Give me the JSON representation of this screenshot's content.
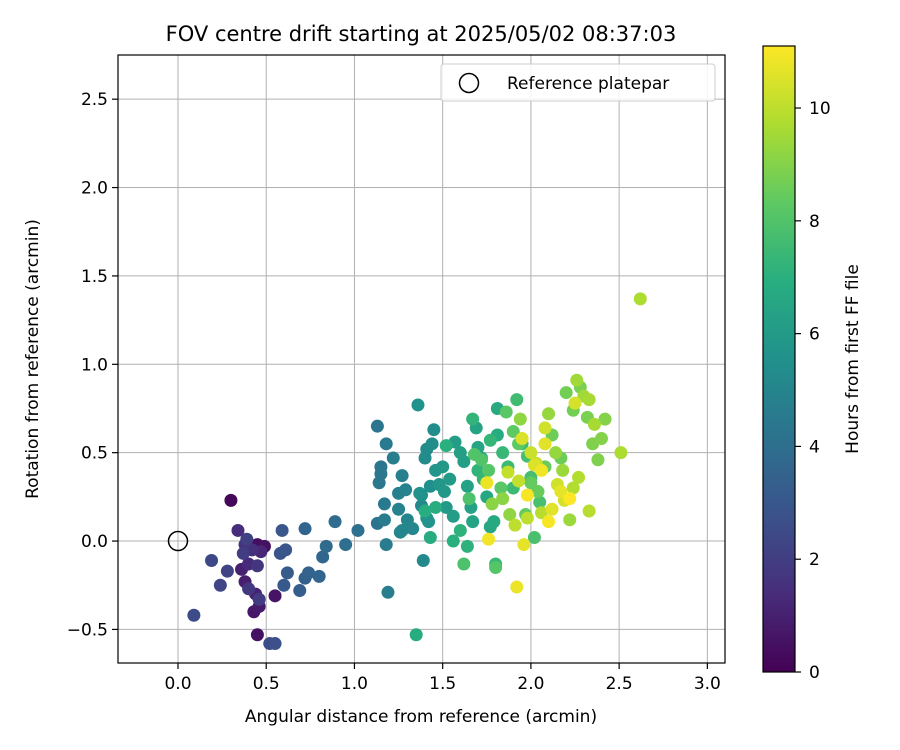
{
  "chart_data": {
    "type": "scatter",
    "title": "FOV centre drift starting at 2025/05/02 08:37:03",
    "xlabel": "Angular distance from reference (arcmin)",
    "ylabel": "Rotation from reference (arcmin)",
    "xlim": [
      -0.34,
      3.1
    ],
    "ylim": [
      -0.69,
      2.75
    ],
    "xticks": [
      "0.0",
      "0.5",
      "1.0",
      "1.5",
      "2.0",
      "2.5",
      "3.0"
    ],
    "yticks": [
      "−0.5",
      "0.0",
      "0.5",
      "1.0",
      "1.5",
      "2.0",
      "2.5"
    ],
    "grid": true,
    "legend": {
      "position": "top-right",
      "entries": [
        "Reference platepar"
      ]
    },
    "reference_point": {
      "x": 0.0,
      "y": 0.0,
      "marker": "open-circle"
    },
    "colorbar": {
      "label": "Hours from first FF file",
      "range": [
        0,
        11.1
      ],
      "ticks": [
        "0",
        "2",
        "4",
        "6",
        "8",
        "10"
      ],
      "colormap": "viridis"
    },
    "points": [
      [
        0.3,
        0.23,
        0.2
      ],
      [
        0.45,
        -0.02,
        0.4
      ],
      [
        0.49,
        -0.03,
        0.5
      ],
      [
        0.55,
        -0.31,
        0.6
      ],
      [
        0.45,
        -0.53,
        0.5
      ],
      [
        0.43,
        -0.4,
        0.7
      ],
      [
        0.46,
        -0.37,
        0.8
      ],
      [
        0.38,
        -0.23,
        0.9
      ],
      [
        0.36,
        -0.16,
        1.0
      ],
      [
        0.44,
        -0.3,
        1.1
      ],
      [
        0.47,
        -0.06,
        1.2
      ],
      [
        0.4,
        -0.13,
        1.3
      ],
      [
        0.34,
        0.06,
        1.4
      ],
      [
        0.42,
        -0.05,
        1.5
      ],
      [
        0.38,
        -0.02,
        1.6
      ],
      [
        0.45,
        -0.14,
        1.7
      ],
      [
        0.4,
        -0.27,
        1.8
      ],
      [
        0.46,
        -0.33,
        1.9
      ],
      [
        0.37,
        -0.07,
        2.0
      ],
      [
        0.39,
        0.01,
        2.1
      ],
      [
        0.28,
        -0.17,
        2.2
      ],
      [
        0.24,
        -0.25,
        2.3
      ],
      [
        0.19,
        -0.11,
        2.4
      ],
      [
        0.09,
        -0.42,
        2.5
      ],
      [
        0.52,
        -0.58,
        2.6
      ],
      [
        0.55,
        -0.58,
        2.7
      ],
      [
        0.58,
        -0.07,
        2.8
      ],
      [
        0.61,
        -0.05,
        2.9
      ],
      [
        0.59,
        0.06,
        3.0
      ],
      [
        0.6,
        -0.25,
        3.1
      ],
      [
        0.62,
        -0.18,
        3.2
      ],
      [
        0.69,
        -0.28,
        3.3
      ],
      [
        0.72,
        -0.21,
        3.4
      ],
      [
        0.74,
        -0.18,
        3.5
      ],
      [
        0.72,
        0.07,
        3.6
      ],
      [
        0.8,
        -0.2,
        3.6
      ],
      [
        0.82,
        -0.09,
        3.7
      ],
      [
        0.84,
        -0.03,
        3.8
      ],
      [
        0.89,
        0.11,
        3.9
      ],
      [
        0.95,
        -0.02,
        4.0
      ],
      [
        1.02,
        0.06,
        4.1
      ],
      [
        1.13,
        0.1,
        4.2
      ],
      [
        1.13,
        0.65,
        4.3
      ],
      [
        1.15,
        0.42,
        4.3
      ],
      [
        1.15,
        0.38,
        4.4
      ],
      [
        1.14,
        0.33,
        4.4
      ],
      [
        1.17,
        0.21,
        4.5
      ],
      [
        1.18,
        0.55,
        4.5
      ],
      [
        1.17,
        0.12,
        4.6
      ],
      [
        1.18,
        -0.02,
        4.6
      ],
      [
        1.19,
        -0.29,
        4.7
      ],
      [
        1.22,
        0.47,
        4.7
      ],
      [
        1.25,
        0.27,
        4.8
      ],
      [
        1.27,
        0.37,
        4.8
      ],
      [
        1.29,
        0.29,
        4.9
      ],
      [
        1.25,
        0.18,
        4.9
      ],
      [
        1.26,
        0.05,
        5.0
      ],
      [
        1.3,
        0.12,
        5.0
      ],
      [
        1.27,
        0.06,
        5.1
      ],
      [
        1.33,
        0.07,
        5.1
      ],
      [
        1.38,
        0.2,
        5.2
      ],
      [
        1.39,
        -0.11,
        5.2
      ],
      [
        1.4,
        0.47,
        5.3
      ],
      [
        1.41,
        0.52,
        5.3
      ],
      [
        1.44,
        0.55,
        5.4
      ],
      [
        1.45,
        0.63,
        5.4
      ],
      [
        1.43,
        0.31,
        5.5
      ],
      [
        1.38,
        0.26,
        5.5
      ],
      [
        1.37,
        0.27,
        5.6
      ],
      [
        1.36,
        0.77,
        5.6
      ],
      [
        1.41,
        0.13,
        5.7
      ],
      [
        1.42,
        0.11,
        5.7
      ],
      [
        1.46,
        0.4,
        5.8
      ],
      [
        1.48,
        0.32,
        5.8
      ],
      [
        1.5,
        0.42,
        5.9
      ],
      [
        1.51,
        0.28,
        5.9
      ],
      [
        1.52,
        0.19,
        6.0
      ],
      [
        1.54,
        0.35,
        6.0
      ],
      [
        1.56,
        0.14,
        6.1
      ],
      [
        1.57,
        0.56,
        6.1
      ],
      [
        1.6,
        0.5,
        6.2
      ],
      [
        1.62,
        0.45,
        6.2
      ],
      [
        1.64,
        0.31,
        6.3
      ],
      [
        1.66,
        0.19,
        6.3
      ],
      [
        1.67,
        0.11,
        6.4
      ],
      [
        1.69,
        0.64,
        6.4
      ],
      [
        1.7,
        0.53,
        6.5
      ],
      [
        1.72,
        0.47,
        6.5
      ],
      [
        1.75,
        0.25,
        6.6
      ],
      [
        1.77,
        0.08,
        6.6
      ],
      [
        1.79,
        0.11,
        6.7
      ],
      [
        1.81,
        0.75,
        6.7
      ],
      [
        1.81,
        0.6,
        6.8
      ],
      [
        1.43,
        0.02,
        6.8
      ],
      [
        1.35,
        -0.53,
        6.8
      ],
      [
        1.4,
        0.17,
        6.9
      ],
      [
        1.46,
        0.19,
        6.9
      ],
      [
        1.52,
        0.54,
        7.0
      ],
      [
        1.56,
        0.0,
        7.0
      ],
      [
        1.6,
        0.06,
        7.1
      ],
      [
        1.64,
        -0.03,
        7.1
      ],
      [
        1.67,
        0.69,
        7.2
      ],
      [
        1.7,
        0.4,
        7.2
      ],
      [
        1.73,
        0.35,
        7.3
      ],
      [
        1.77,
        0.57,
        7.3
      ],
      [
        1.8,
        -0.13,
        7.4
      ],
      [
        1.84,
        0.5,
        7.4
      ],
      [
        1.87,
        0.42,
        7.5
      ],
      [
        1.9,
        0.3,
        7.5
      ],
      [
        1.92,
        0.8,
        7.6
      ],
      [
        1.95,
        0.55,
        7.6
      ],
      [
        1.98,
        0.48,
        7.7
      ],
      [
        2.0,
        0.36,
        7.7
      ],
      [
        2.02,
        0.02,
        7.8
      ],
      [
        2.05,
        0.22,
        7.8
      ],
      [
        1.62,
        -0.13,
        7.9
      ],
      [
        1.65,
        0.24,
        7.9
      ],
      [
        1.68,
        0.49,
        8.0
      ],
      [
        1.72,
        0.46,
        8.0
      ],
      [
        1.76,
        0.4,
        8.1
      ],
      [
        1.8,
        -0.15,
        8.1
      ],
      [
        1.83,
        0.3,
        8.2
      ],
      [
        1.86,
        0.73,
        8.2
      ],
      [
        1.9,
        0.62,
        8.3
      ],
      [
        1.93,
        0.55,
        8.3
      ],
      [
        1.97,
        0.15,
        8.4
      ],
      [
        2.0,
        0.33,
        8.4
      ],
      [
        2.04,
        0.28,
        8.5
      ],
      [
        2.08,
        0.42,
        8.5
      ],
      [
        2.12,
        0.6,
        8.6
      ],
      [
        2.17,
        0.47,
        8.6
      ],
      [
        2.2,
        0.84,
        8.7
      ],
      [
        2.24,
        0.74,
        8.7
      ],
      [
        2.28,
        0.87,
        8.8
      ],
      [
        2.32,
        0.7,
        8.8
      ],
      [
        2.35,
        0.55,
        8.9
      ],
      [
        2.38,
        0.46,
        8.9
      ],
      [
        2.4,
        0.58,
        9.0
      ],
      [
        2.42,
        0.69,
        9.0
      ],
      [
        1.78,
        0.21,
        9.1
      ],
      [
        1.84,
        0.24,
        9.1
      ],
      [
        1.88,
        0.15,
        9.2
      ],
      [
        1.94,
        0.69,
        9.2
      ],
      [
        2.1,
        0.72,
        9.3
      ],
      [
        2.14,
        0.5,
        9.3
      ],
      [
        2.18,
        0.4,
        9.4
      ],
      [
        2.22,
        0.12,
        9.4
      ],
      [
        2.26,
        0.91,
        9.5
      ],
      [
        2.3,
        0.82,
        9.5
      ],
      [
        2.33,
        0.8,
        9.6
      ],
      [
        2.36,
        0.66,
        9.6
      ],
      [
        2.62,
        1.37,
        9.7
      ],
      [
        2.51,
        0.5,
        9.7
      ],
      [
        2.27,
        0.36,
        9.8
      ],
      [
        2.24,
        0.3,
        9.8
      ],
      [
        2.33,
        0.17,
        9.9
      ],
      [
        2.06,
        0.16,
        9.9
      ],
      [
        1.98,
        0.13,
        10.0
      ],
      [
        1.91,
        0.09,
        10.0
      ],
      [
        1.87,
        0.39,
        10.1
      ],
      [
        1.93,
        0.34,
        10.1
      ],
      [
        2.0,
        0.5,
        10.2
      ],
      [
        2.03,
        0.44,
        10.2
      ],
      [
        2.08,
        0.64,
        10.3
      ],
      [
        2.15,
        0.32,
        10.3
      ],
      [
        2.19,
        0.23,
        10.4
      ],
      [
        2.25,
        0.78,
        10.4
      ],
      [
        1.95,
        0.58,
        10.5
      ],
      [
        2.02,
        0.43,
        10.5
      ],
      [
        2.08,
        0.55,
        10.6
      ],
      [
        2.12,
        0.18,
        10.6
      ],
      [
        2.17,
        0.28,
        10.7
      ],
      [
        1.96,
        -0.02,
        10.7
      ],
      [
        1.92,
        -0.26,
        10.8
      ],
      [
        1.75,
        0.33,
        10.8
      ],
      [
        1.76,
        0.01,
        10.9
      ],
      [
        2.06,
        0.4,
        10.9
      ],
      [
        1.98,
        0.26,
        11.0
      ],
      [
        2.1,
        0.11,
        11.0
      ],
      [
        2.22,
        0.24,
        11.1
      ]
    ]
  }
}
